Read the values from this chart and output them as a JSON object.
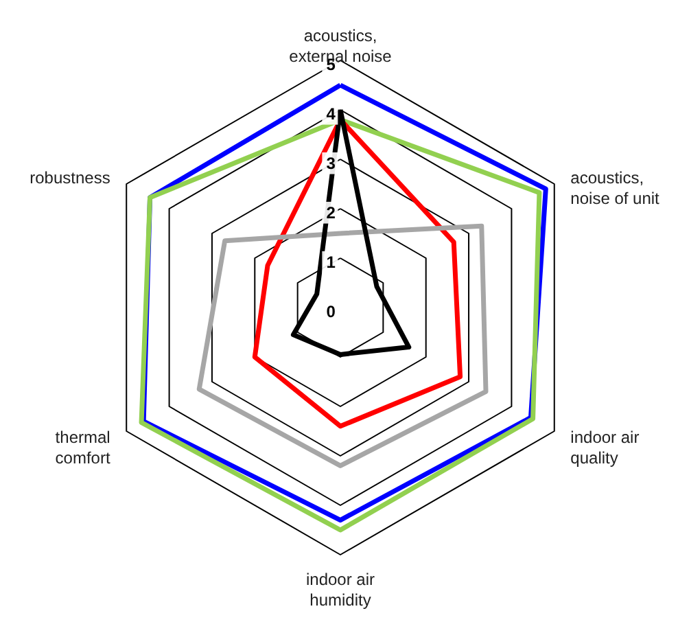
{
  "chart_data": {
    "type": "radar",
    "categories": [
      "acoustics, external noise",
      "acoustics, noise of unit",
      "indoor air quality",
      "indoor air humidity",
      "thermal comfort",
      "robustness"
    ],
    "series": [
      {
        "color": "#0000ff",
        "values": [
          4.5,
          4.8,
          4.45,
          4.3,
          4.6,
          4.45
        ]
      },
      {
        "color": "#92d050",
        "values": [
          3.8,
          4.65,
          4.5,
          4.5,
          4.65,
          4.45
        ]
      },
      {
        "color": "#ff0000",
        "values": [
          3.8,
          2.65,
          2.8,
          2.4,
          2.0,
          1.7
        ]
      },
      {
        "color": "#a6a6a6",
        "values": [
          1.5,
          3.3,
          3.4,
          3.2,
          3.3,
          2.7
        ]
      },
      {
        "color": "#000000",
        "values": [
          4.0,
          0.85,
          1.6,
          0.95,
          1.1,
          0.55
        ]
      }
    ],
    "ylim": [
      0,
      5
    ],
    "yticks": [
      0,
      1,
      2,
      3,
      4,
      5
    ],
    "grid": true
  }
}
